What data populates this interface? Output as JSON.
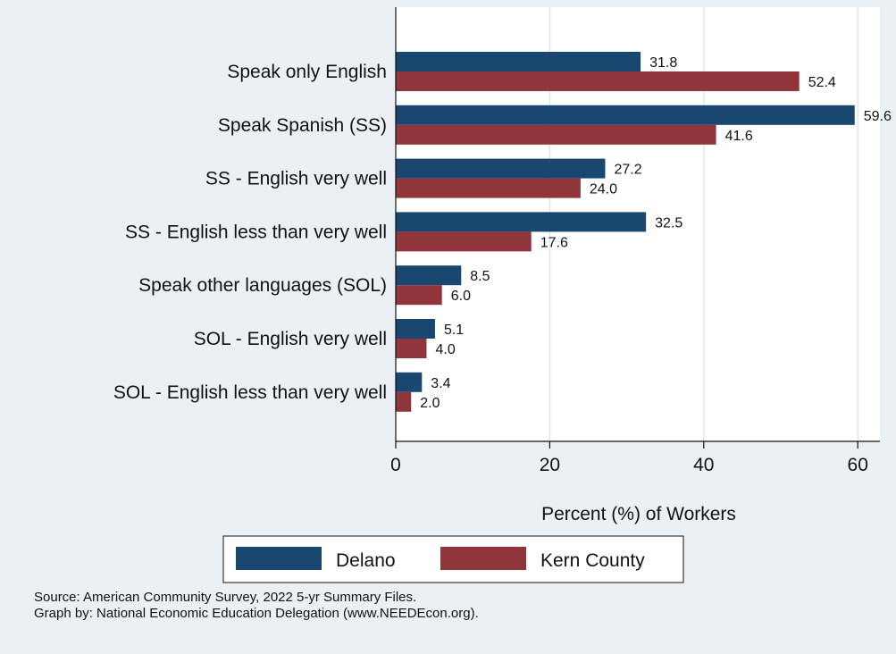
{
  "chart_data": {
    "type": "bar",
    "orientation": "horizontal",
    "categories": [
      "Speak only English",
      "Speak Spanish (SS)",
      "SS - English very well",
      "SS - English less than very well",
      "Speak other languages (SOL)",
      "SOL - English very well",
      "SOL - English less than very well"
    ],
    "series": [
      {
        "name": "Delano",
        "color": "#1a476f",
        "values": [
          31.8,
          59.6,
          27.2,
          32.5,
          8.5,
          5.1,
          3.4
        ],
        "labels": [
          "31.8",
          "59.6",
          "27.2",
          "32.5",
          "8.5",
          "5.1",
          "3.4"
        ]
      },
      {
        "name": "Kern County",
        "color": "#90353b",
        "values": [
          52.4,
          41.6,
          24.0,
          17.6,
          6.0,
          4.0,
          2.0
        ],
        "labels": [
          "52.4",
          "41.6",
          "24.0",
          "17.6",
          "6.0",
          "4.0",
          "2.0"
        ]
      }
    ],
    "xlabel": "Percent (%) of Workers",
    "xticks": [
      "0",
      "20",
      "40",
      "60"
    ],
    "xlim": [
      0,
      63
    ],
    "grid": true,
    "legend_position": "bottom"
  },
  "notes": {
    "source": "Source: American Community Survey, 2022 5-yr Summary Files.",
    "credit": "Graph by: National Economic Education Delegation (www.NEEDEcon.org)."
  }
}
